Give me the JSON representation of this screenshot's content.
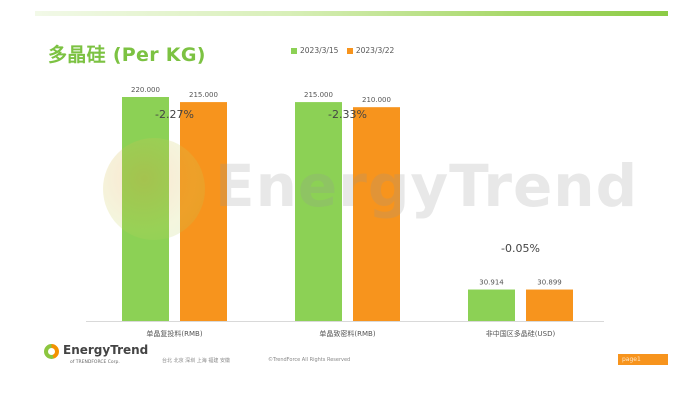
{
  "title": "多晶硅 (Per KG)",
  "legend": [
    {
      "label": "2023/3/15",
      "color": "#8cd155"
    },
    {
      "label": "2023/3/22",
      "color": "#f7941d"
    }
  ],
  "watermark": "EnergyTrend",
  "chart_data": {
    "type": "bar",
    "categories": [
      "单晶复投料(RMB)",
      "单晶致密料(RMB)",
      "非中国区多晶硅(USD)"
    ],
    "series": [
      {
        "name": "2023/3/15",
        "color": "#8cd155",
        "values": [
          220.0,
          215.0,
          30.914
        ],
        "labels": [
          "220.000",
          "215.000",
          "30.914"
        ]
      },
      {
        "name": "2023/3/22",
        "color": "#f7941d",
        "values": [
          215.0,
          210.0,
          30.899
        ],
        "labels": [
          "215.000",
          "210.000",
          "30.899"
        ]
      }
    ],
    "changes": [
      "-2.27%",
      "-2.33%",
      "-0.05%"
    ],
    "ylim": [
      0,
      220
    ],
    "grid": false,
    "legend_position": "top"
  },
  "footer": {
    "logo_name": "EnergyTrend",
    "logo_sub": "of TRENDFORCE Corp.",
    "cities": "台北  北京  深圳  上海  福建  安徽",
    "copyright": "©TrendForce All Rights Reserved",
    "page": "page1"
  }
}
